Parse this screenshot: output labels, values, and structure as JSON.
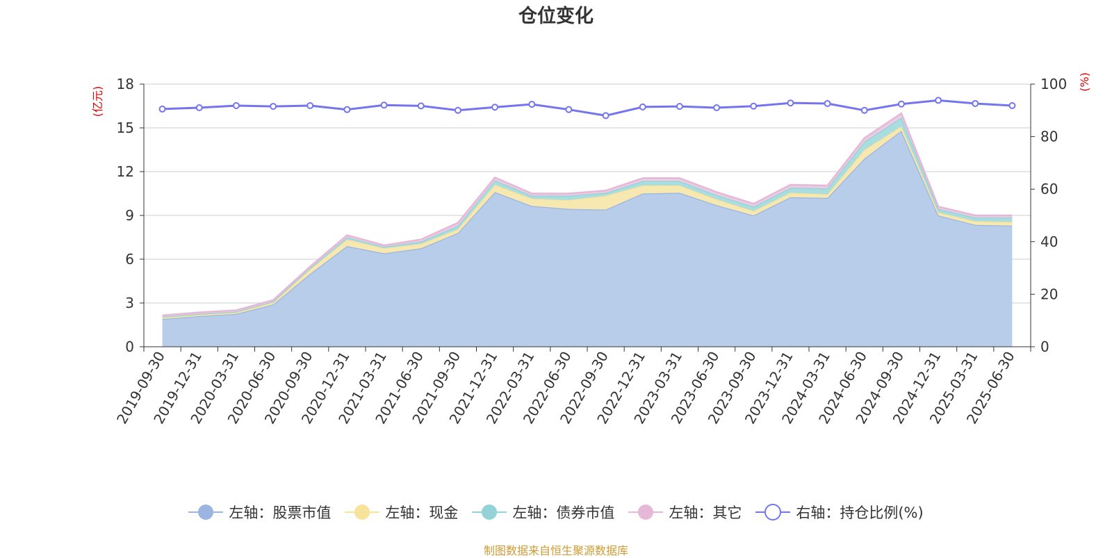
{
  "chart_data": {
    "type": "area",
    "title": "仓位变化",
    "ylabel_left": "(亿元)",
    "ylabel_right": "(%)",
    "ylim_left": [
      0,
      18
    ],
    "yticks_left": [
      0,
      3,
      6,
      9,
      12,
      15,
      18
    ],
    "ylim_right": [
      0,
      100
    ],
    "yticks_right": [
      0,
      20,
      40,
      60,
      80,
      100
    ],
    "grid": true,
    "legend_position": "bottom",
    "stacked": true,
    "categories": [
      "2019-09-30",
      "2019-12-31",
      "2020-03-31",
      "2020-06-30",
      "2020-09-30",
      "2020-12-31",
      "2021-03-31",
      "2021-06-30",
      "2021-09-30",
      "2021-12-31",
      "2022-03-31",
      "2022-06-30",
      "2022-09-30",
      "2022-12-31",
      "2023-03-31",
      "2023-06-30",
      "2023-09-30",
      "2023-12-31",
      "2024-03-31",
      "2024-06-30",
      "2024-09-30",
      "2024-12-31",
      "2025-03-31",
      "2025-06-30"
    ],
    "series": [
      {
        "name": "左轴：股票市值",
        "axis": "left",
        "color": "#9bb5e0",
        "fill": "#b8cdea",
        "values": [
          1.9,
          2.1,
          2.25,
          2.9,
          5.0,
          6.9,
          6.4,
          6.75,
          7.8,
          10.6,
          9.65,
          9.45,
          9.4,
          10.5,
          10.55,
          9.7,
          9.0,
          10.25,
          10.2,
          12.9,
          14.8,
          9.0,
          8.35,
          8.3
        ]
      },
      {
        "name": "左轴：现金",
        "axis": "left",
        "color": "#f7e39a",
        "fill": "#f7e7b0",
        "values": [
          0.1,
          0.1,
          0.1,
          0.15,
          0.3,
          0.45,
          0.35,
          0.3,
          0.25,
          0.5,
          0.5,
          0.6,
          0.95,
          0.55,
          0.5,
          0.4,
          0.3,
          0.3,
          0.25,
          0.6,
          0.3,
          0.2,
          0.25,
          0.25
        ]
      },
      {
        "name": "左轴：债券市值",
        "axis": "left",
        "color": "#93d3d8",
        "fill": "#a9dde0",
        "values": [
          0.05,
          0.05,
          0.05,
          0.05,
          0.1,
          0.15,
          0.1,
          0.15,
          0.25,
          0.3,
          0.2,
          0.3,
          0.2,
          0.3,
          0.3,
          0.3,
          0.3,
          0.35,
          0.4,
          0.55,
          0.6,
          0.25,
          0.25,
          0.3
        ]
      },
      {
        "name": "左轴：其它",
        "axis": "left",
        "color": "#e6b8d8",
        "fill": "#eacde2",
        "values": [
          0.1,
          0.1,
          0.1,
          0.1,
          0.1,
          0.15,
          0.1,
          0.15,
          0.2,
          0.2,
          0.15,
          0.15,
          0.15,
          0.2,
          0.2,
          0.2,
          0.2,
          0.2,
          0.2,
          0.25,
          0.3,
          0.15,
          0.15,
          0.15
        ]
      },
      {
        "name": "右轴：持仓比例(%)",
        "axis": "right",
        "type": "line",
        "color": "#7474ee",
        "values": [
          90.5,
          91.0,
          91.8,
          91.5,
          91.8,
          90.3,
          92.0,
          91.7,
          90.0,
          91.2,
          92.3,
          90.3,
          88.0,
          91.3,
          91.5,
          91.0,
          91.6,
          92.8,
          92.6,
          90.0,
          92.4,
          93.8,
          92.6,
          91.8
        ]
      }
    ],
    "source": "制图数据来自恒生聚源数据库"
  }
}
